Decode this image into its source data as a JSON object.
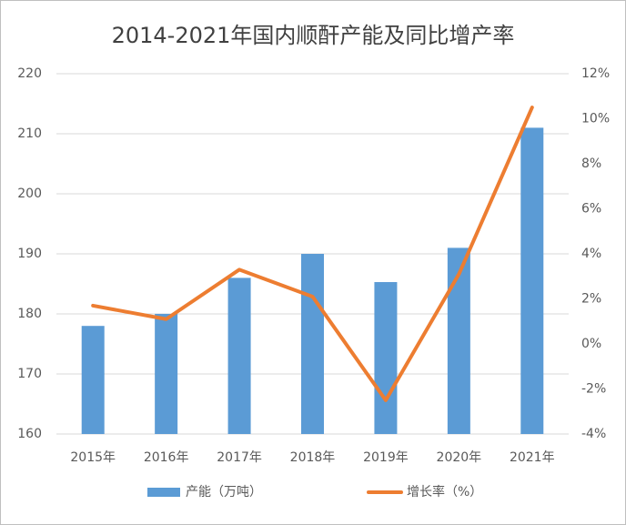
{
  "chart_data": {
    "type": "bar-line",
    "title": "2014-2021年国内顺酐产能及同比增产率",
    "categories": [
      "2015年",
      "2016年",
      "2017年",
      "2018年",
      "2019年",
      "2020年",
      "2021年"
    ],
    "series": [
      {
        "name": "产能（万吨）",
        "type": "bar",
        "color": "#5b9bd5",
        "values": [
          178,
          180,
          186,
          190,
          185.3,
          191,
          211
        ]
      },
      {
        "name": "增长率（%）",
        "type": "line",
        "axis": "y2",
        "color": "#ed7d31",
        "values": [
          1.7,
          1.1,
          3.3,
          2.1,
          -2.5,
          3.1,
          10.5
        ]
      }
    ],
    "ylim": [
      160,
      220
    ],
    "yticks": [
      160,
      170,
      180,
      190,
      200,
      210,
      220
    ],
    "y2lim": [
      -4,
      12
    ],
    "y2ticks": [
      {
        "value": -4,
        "label": "-4%"
      },
      {
        "value": -2,
        "label": "-2%"
      },
      {
        "value": 0,
        "label": "0%"
      },
      {
        "value": 2,
        "label": "2%"
      },
      {
        "value": 4,
        "label": "4%"
      },
      {
        "value": 6,
        "label": "6%"
      },
      {
        "value": 8,
        "label": "8%"
      },
      {
        "value": 10,
        "label": "10%"
      },
      {
        "value": 12,
        "label": "12%"
      }
    ],
    "grid": true,
    "legend": "bottom"
  }
}
